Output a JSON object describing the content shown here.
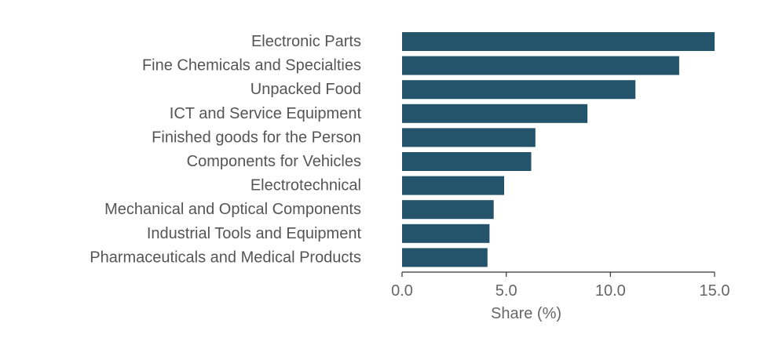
{
  "chart_data": {
    "type": "bar",
    "orientation": "horizontal",
    "title": "",
    "xlabel": "Share (%)",
    "ylabel": "",
    "xlim": [
      0,
      15.0
    ],
    "xticks": [
      0.0,
      5.0,
      10.0,
      15.0
    ],
    "xtick_labels": [
      "0.0",
      "5.0",
      "10.0",
      "15.0"
    ],
    "grid": false,
    "bar_color": "#23546b",
    "categories": [
      "Electronic Parts",
      "Fine Chemicals and Specialties",
      "Unpacked Food",
      "ICT and Service Equipment",
      "Finished goods for the Person",
      "Components for Vehicles",
      "Electrotechnical",
      "Mechanical and Optical Components",
      "Industrial Tools and Equipment",
      "Pharmaceuticals and Medical Products"
    ],
    "values": [
      15.0,
      13.3,
      11.2,
      8.9,
      6.4,
      6.2,
      4.9,
      4.4,
      4.2,
      4.1
    ]
  }
}
